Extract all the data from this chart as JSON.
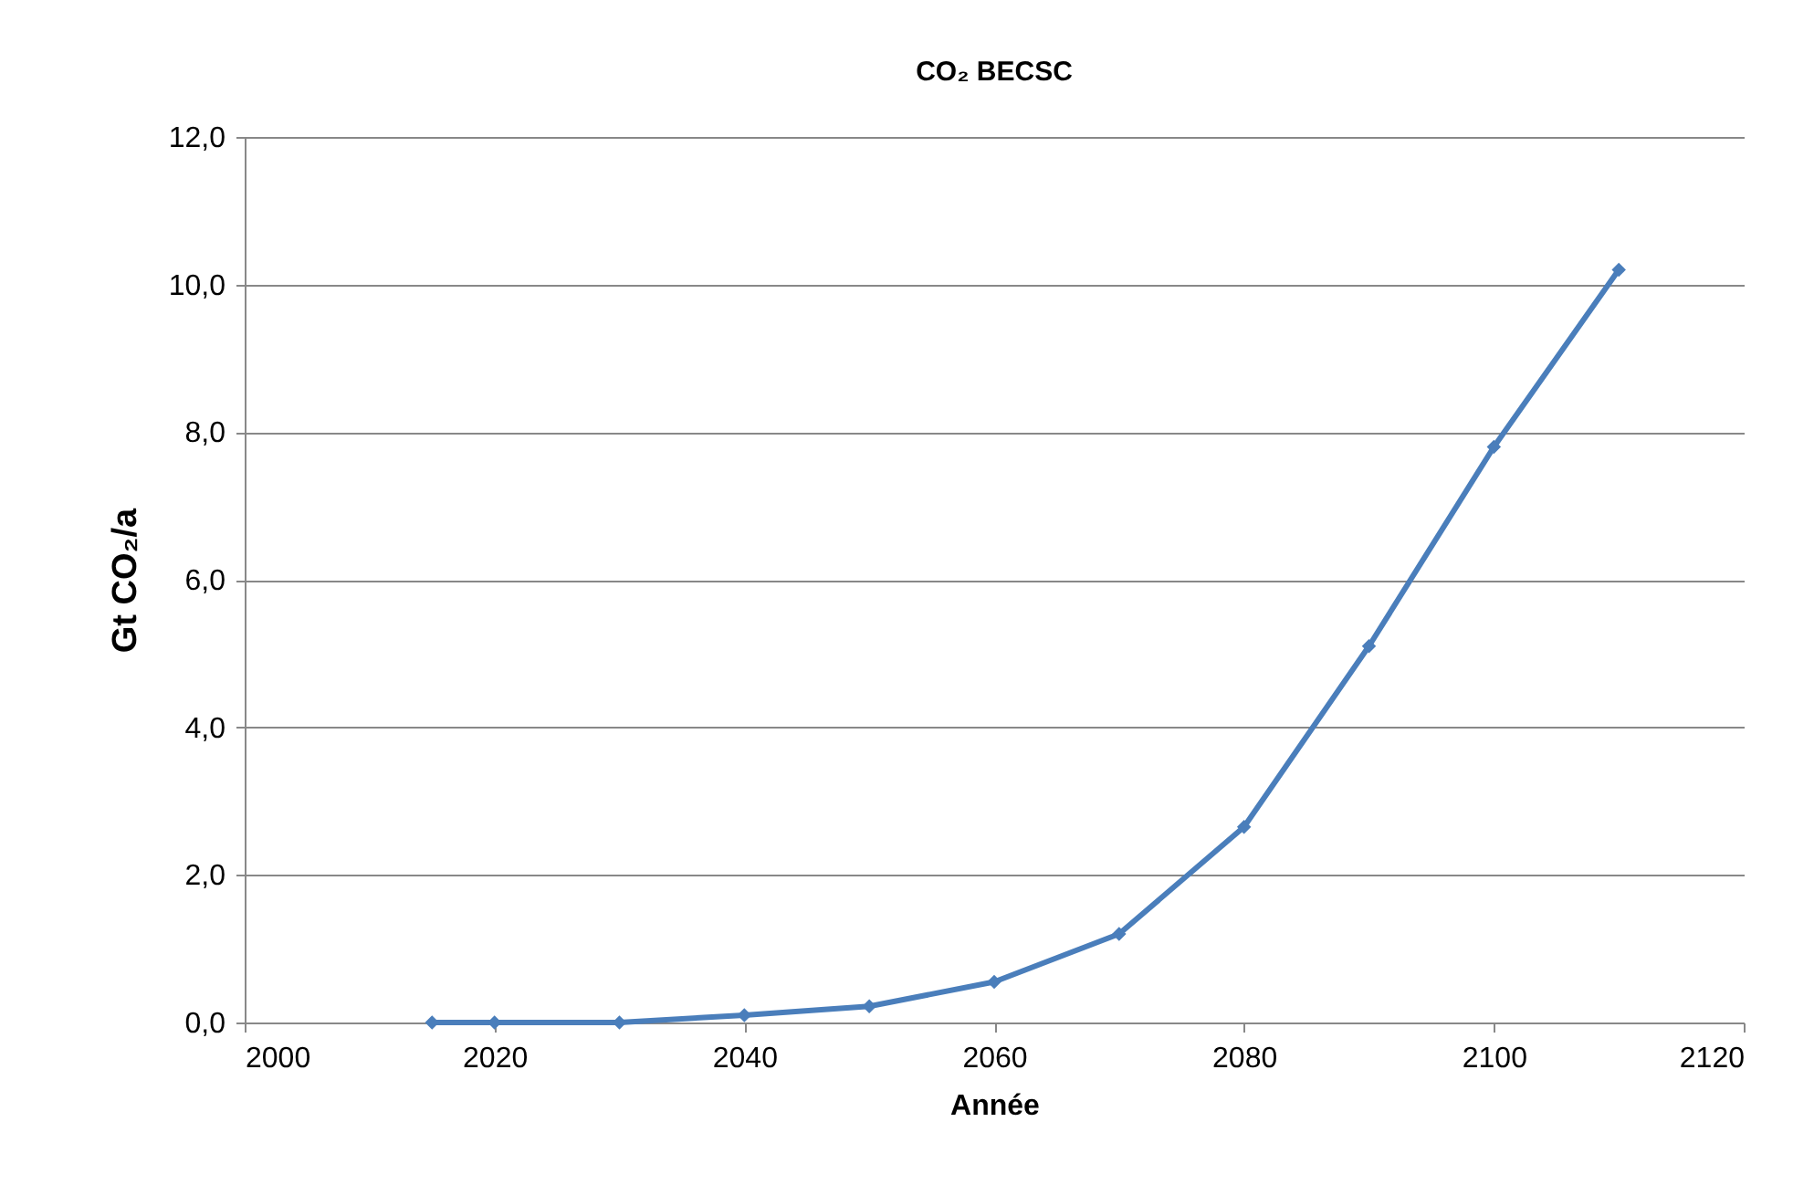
{
  "chart_data": {
    "type": "line",
    "title": "CO₂ BECSC",
    "xlabel": "Année",
    "ylabel": "Gt CO₂/a",
    "x": [
      2015,
      2020,
      2030,
      2040,
      2050,
      2060,
      2070,
      2080,
      2090,
      2100,
      2110
    ],
    "series": [
      {
        "color": "#4a7ebb",
        "values": [
          0,
          0,
          0,
          0.1,
          0.22,
          0.55,
          1.2,
          2.65,
          5.1,
          7.8,
          10.2
        ]
      }
    ],
    "xlim": [
      2000,
      2120
    ],
    "xticks": [
      2000,
      2020,
      2040,
      2060,
      2080,
      2100,
      2120
    ],
    "ylim": [
      0,
      12
    ],
    "yticks": [
      {
        "value": 0,
        "label": "0,0"
      },
      {
        "value": 2,
        "label": "2,0"
      },
      {
        "value": 4,
        "label": "4,0"
      },
      {
        "value": 6,
        "label": "6,0"
      },
      {
        "value": 8,
        "label": "8,0"
      },
      {
        "value": 10,
        "label": "10,0"
      },
      {
        "value": 12,
        "label": "12,0"
      }
    ],
    "grid": "y",
    "marker": "diamond",
    "line_style": "solid"
  }
}
